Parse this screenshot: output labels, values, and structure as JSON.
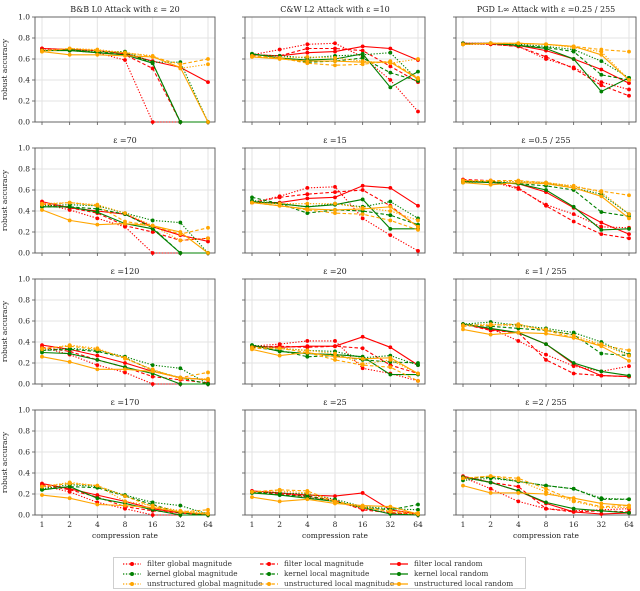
{
  "figure": {
    "x_axis_label": "compression rate",
    "y_axis_label": "robust accuracy"
  },
  "legend": [
    {
      "label": "filter global magnitude",
      "color": "#ff0000",
      "style": "dotted"
    },
    {
      "label": "filter local magnitude",
      "color": "#ff0000",
      "style": "dashed"
    },
    {
      "label": "filter local random",
      "color": "#ff0000",
      "style": "solid"
    },
    {
      "label": "kernel global magnitude",
      "color": "#008000",
      "style": "dotted"
    },
    {
      "label": "kernel local magnitude",
      "color": "#008000",
      "style": "dashed"
    },
    {
      "label": "kernel local random",
      "color": "#008000",
      "style": "solid"
    },
    {
      "label": "unstructured global magnitude",
      "color": "#ffa500",
      "style": "dotted"
    },
    {
      "label": "unstructured local magnitude",
      "color": "#ffa500",
      "style": "dashed"
    },
    {
      "label": "unstructured local random",
      "color": "#ffa500",
      "style": "solid"
    }
  ],
  "chart_data": {
    "type": "line",
    "x": [
      1,
      2,
      4,
      8,
      16,
      32,
      64
    ],
    "x_tick_labels": [
      "1",
      "2",
      "4",
      "8",
      "16",
      "32",
      "64"
    ],
    "y_tick_labels": [
      "0.0",
      "0.2",
      "0.4",
      "0.6",
      "0.8",
      "1.0"
    ],
    "ylim": [
      0,
      1
    ],
    "xscale": "log2",
    "grid": true,
    "legend_position": "bottom-center",
    "series_names": [
      "filter global magnitude",
      "filter local magnitude",
      "filter local random",
      "kernel global magnitude",
      "kernel local magnitude",
      "kernel local random",
      "unstructured global magnitude",
      "unstructured local magnitude",
      "unstructured local random"
    ],
    "panels": [
      {
        "title": "B&B L0 Attack with ε = 20",
        "row": 0,
        "col": 0,
        "values": [
          [
            0.7,
            0.68,
            0.66,
            0.59,
            0.0,
            0.0,
            0.0
          ],
          [
            0.7,
            0.69,
            0.66,
            0.64,
            0.51,
            0.0,
            0.0
          ],
          [
            0.7,
            0.69,
            0.68,
            0.65,
            0.58,
            0.52,
            0.38
          ],
          [
            0.68,
            0.69,
            0.67,
            0.67,
            0.57,
            0.57,
            0.0
          ],
          [
            0.68,
            0.69,
            0.66,
            0.66,
            0.56,
            0.0,
            0.0
          ],
          [
            0.68,
            0.68,
            0.66,
            0.64,
            0.56,
            0.0,
            0.0
          ],
          [
            0.68,
            0.7,
            0.69,
            0.66,
            0.63,
            0.51,
            0.55
          ],
          [
            0.67,
            0.7,
            0.68,
            0.66,
            0.62,
            0.55,
            0.6
          ],
          [
            0.67,
            0.64,
            0.64,
            0.63,
            0.62,
            0.52,
            0.0
          ]
        ]
      },
      {
        "title": "C&W L2 Attack with ε =10",
        "row": 0,
        "col": 1,
        "values": [
          [
            0.64,
            0.69,
            0.74,
            0.75,
            0.62,
            0.4,
            0.1
          ],
          [
            0.64,
            0.63,
            0.7,
            0.7,
            0.68,
            0.53,
            0.38
          ],
          [
            0.64,
            0.63,
            0.66,
            0.67,
            0.72,
            0.7,
            0.59
          ],
          [
            0.64,
            0.63,
            0.61,
            0.63,
            0.64,
            0.66,
            0.4
          ],
          [
            0.65,
            0.61,
            0.57,
            0.58,
            0.61,
            0.47,
            0.39
          ],
          [
            0.65,
            0.61,
            0.59,
            0.6,
            0.65,
            0.33,
            0.48
          ],
          [
            0.62,
            0.61,
            0.62,
            0.61,
            0.58,
            0.56,
            0.6
          ],
          [
            0.63,
            0.61,
            0.56,
            0.54,
            0.55,
            0.58,
            0.42
          ],
          [
            0.62,
            0.6,
            0.58,
            0.58,
            0.57,
            0.57,
            0.41
          ]
        ]
      },
      {
        "title": "PGD L∞ Attack with ε =0.25 / 255",
        "row": 0,
        "col": 2,
        "values": [
          [
            0.74,
            0.74,
            0.72,
            0.6,
            0.52,
            0.38,
            0.31
          ],
          [
            0.75,
            0.74,
            0.72,
            0.62,
            0.51,
            0.35,
            0.25
          ],
          [
            0.75,
            0.75,
            0.73,
            0.68,
            0.6,
            0.5,
            0.37
          ],
          [
            0.75,
            0.75,
            0.74,
            0.72,
            0.69,
            0.58,
            0.42
          ],
          [
            0.74,
            0.75,
            0.73,
            0.71,
            0.67,
            0.45,
            0.4
          ],
          [
            0.74,
            0.75,
            0.73,
            0.7,
            0.6,
            0.29,
            0.42
          ],
          [
            0.74,
            0.75,
            0.75,
            0.74,
            0.71,
            0.67,
            0.4
          ],
          [
            0.74,
            0.75,
            0.75,
            0.74,
            0.72,
            0.69,
            0.67
          ],
          [
            0.74,
            0.75,
            0.75,
            0.74,
            0.72,
            0.64,
            0.4
          ]
        ]
      },
      {
        "title": "ε =70",
        "row": 1,
        "col": 0,
        "values": [
          [
            0.47,
            0.41,
            0.33,
            0.25,
            0.0,
            0.0,
            0.0
          ],
          [
            0.47,
            0.43,
            0.38,
            0.26,
            0.2,
            0.12,
            0.14
          ],
          [
            0.49,
            0.43,
            0.4,
            0.37,
            0.25,
            0.17,
            0.11
          ],
          [
            0.45,
            0.46,
            0.45,
            0.38,
            0.31,
            0.29,
            0.0
          ],
          [
            0.44,
            0.44,
            0.42,
            0.37,
            0.24,
            0.0,
            0.0
          ],
          [
            0.44,
            0.44,
            0.39,
            0.28,
            0.23,
            0.0,
            0.0
          ],
          [
            0.47,
            0.48,
            0.46,
            0.38,
            0.26,
            0.12,
            0.14
          ],
          [
            0.46,
            0.48,
            0.45,
            0.3,
            0.26,
            0.18,
            0.24
          ],
          [
            0.41,
            0.31,
            0.27,
            0.28,
            0.26,
            0.2,
            0.0
          ]
        ]
      },
      {
        "title": "ε =15",
        "row": 1,
        "col": 1,
        "values": [
          [
            0.48,
            0.54,
            0.62,
            0.63,
            0.33,
            0.17,
            0.02
          ],
          [
            0.48,
            0.53,
            0.56,
            0.58,
            0.6,
            0.45,
            0.25
          ],
          [
            0.48,
            0.48,
            0.52,
            0.53,
            0.64,
            0.62,
            0.45
          ],
          [
            0.5,
            0.47,
            0.44,
            0.47,
            0.44,
            0.49,
            0.33
          ],
          [
            0.53,
            0.47,
            0.38,
            0.41,
            0.4,
            0.36,
            0.27
          ],
          [
            0.49,
            0.47,
            0.44,
            0.46,
            0.51,
            0.23,
            0.23
          ],
          [
            0.48,
            0.47,
            0.47,
            0.47,
            0.43,
            0.4,
            0.31
          ],
          [
            0.48,
            0.45,
            0.41,
            0.38,
            0.37,
            0.31,
            0.22
          ],
          [
            0.48,
            0.45,
            0.42,
            0.41,
            0.42,
            0.44,
            0.25
          ]
        ]
      },
      {
        "title": "ε =0.5 / 255",
        "row": 1,
        "col": 2,
        "values": [
          [
            0.69,
            0.68,
            0.61,
            0.46,
            0.37,
            0.25,
            0.24
          ],
          [
            0.7,
            0.69,
            0.62,
            0.45,
            0.3,
            0.18,
            0.14
          ],
          [
            0.69,
            0.67,
            0.66,
            0.58,
            0.43,
            0.29,
            0.18
          ],
          [
            0.67,
            0.68,
            0.68,
            0.67,
            0.62,
            0.56,
            0.37
          ],
          [
            0.68,
            0.68,
            0.66,
            0.64,
            0.6,
            0.39,
            0.35
          ],
          [
            0.68,
            0.67,
            0.66,
            0.6,
            0.44,
            0.22,
            0.23
          ],
          [
            0.69,
            0.68,
            0.68,
            0.67,
            0.64,
            0.58,
            0.37
          ],
          [
            0.69,
            0.69,
            0.69,
            0.67,
            0.63,
            0.59,
            0.55
          ],
          [
            0.67,
            0.65,
            0.67,
            0.66,
            0.62,
            0.54,
            0.33
          ]
        ]
      },
      {
        "title": "ε =120",
        "row": 2,
        "col": 0,
        "values": [
          [
            0.35,
            0.28,
            0.18,
            0.11,
            0.0,
            0.0,
            0.0
          ],
          [
            0.35,
            0.31,
            0.23,
            0.16,
            0.07,
            0.04,
            0.01
          ],
          [
            0.37,
            0.33,
            0.27,
            0.2,
            0.12,
            0.06,
            0.04
          ],
          [
            0.32,
            0.34,
            0.32,
            0.26,
            0.18,
            0.15,
            0.0
          ],
          [
            0.32,
            0.33,
            0.31,
            0.25,
            0.13,
            0.06,
            0.0
          ],
          [
            0.3,
            0.29,
            0.23,
            0.16,
            0.1,
            0.0,
            0.0
          ],
          [
            0.33,
            0.37,
            0.34,
            0.24,
            0.14,
            0.05,
            0.05
          ],
          [
            0.34,
            0.36,
            0.33,
            0.25,
            0.13,
            0.06,
            0.11
          ],
          [
            0.26,
            0.21,
            0.14,
            0.14,
            0.12,
            0.06,
            0.04
          ]
        ]
      },
      {
        "title": "ε =20",
        "row": 2,
        "col": 1,
        "values": [
          [
            0.36,
            0.38,
            0.41,
            0.41,
            0.15,
            0.1,
            0.03
          ],
          [
            0.35,
            0.36,
            0.35,
            0.36,
            0.34,
            0.18,
            0.1
          ],
          [
            0.36,
            0.35,
            0.36,
            0.36,
            0.45,
            0.35,
            0.18
          ],
          [
            0.37,
            0.34,
            0.32,
            0.31,
            0.25,
            0.27,
            0.18
          ],
          [
            0.35,
            0.32,
            0.26,
            0.27,
            0.23,
            0.21,
            0.2
          ],
          [
            0.37,
            0.31,
            0.29,
            0.28,
            0.26,
            0.09,
            0.09
          ],
          [
            0.35,
            0.34,
            0.32,
            0.29,
            0.19,
            0.23,
            0.1
          ],
          [
            0.34,
            0.34,
            0.3,
            0.23,
            0.18,
            0.16,
            0.03
          ],
          [
            0.33,
            0.27,
            0.3,
            0.26,
            0.24,
            0.25,
            0.1
          ]
        ]
      },
      {
        "title": "ε =1 / 255",
        "row": 2,
        "col": 2,
        "values": [
          [
            0.57,
            0.53,
            0.41,
            0.28,
            0.17,
            0.12,
            0.17
          ],
          [
            0.57,
            0.51,
            0.49,
            0.23,
            0.1,
            0.08,
            0.07
          ],
          [
            0.57,
            0.52,
            0.49,
            0.38,
            0.19,
            0.08,
            0.07
          ],
          [
            0.57,
            0.59,
            0.56,
            0.53,
            0.49,
            0.4,
            0.28
          ],
          [
            0.57,
            0.55,
            0.53,
            0.51,
            0.47,
            0.29,
            0.27
          ],
          [
            0.57,
            0.53,
            0.49,
            0.38,
            0.2,
            0.12,
            0.08
          ],
          [
            0.56,
            0.57,
            0.55,
            0.52,
            0.46,
            0.38,
            0.27
          ],
          [
            0.55,
            0.56,
            0.57,
            0.51,
            0.44,
            0.37,
            0.32
          ],
          [
            0.52,
            0.47,
            0.49,
            0.48,
            0.44,
            0.36,
            0.22
          ]
        ]
      },
      {
        "title": "ε =170",
        "row": 3,
        "col": 0,
        "values": [
          [
            0.28,
            0.22,
            0.12,
            0.06,
            0.0,
            0.0,
            0.0
          ],
          [
            0.29,
            0.24,
            0.17,
            0.08,
            0.04,
            0.02,
            0.0
          ],
          [
            0.3,
            0.25,
            0.19,
            0.13,
            0.06,
            0.02,
            0.0
          ],
          [
            0.25,
            0.29,
            0.27,
            0.19,
            0.12,
            0.09,
            0.01
          ],
          [
            0.24,
            0.27,
            0.26,
            0.18,
            0.1,
            0.02,
            0.0
          ],
          [
            0.24,
            0.27,
            0.16,
            0.11,
            0.05,
            0.0,
            0.0
          ],
          [
            0.27,
            0.31,
            0.28,
            0.13,
            0.09,
            0.04,
            0.02
          ],
          [
            0.27,
            0.3,
            0.28,
            0.18,
            0.08,
            0.03,
            0.05
          ],
          [
            0.19,
            0.16,
            0.1,
            0.09,
            0.07,
            0.03,
            0.01
          ]
        ]
      },
      {
        "title": "ε =25",
        "row": 3,
        "col": 1,
        "values": [
          [
            0.22,
            0.21,
            0.17,
            0.13,
            0.06,
            0.02,
            0.0
          ],
          [
            0.22,
            0.2,
            0.18,
            0.14,
            0.05,
            0.02,
            0.01
          ],
          [
            0.23,
            0.21,
            0.19,
            0.18,
            0.21,
            0.05,
            0.01
          ],
          [
            0.22,
            0.21,
            0.2,
            0.15,
            0.08,
            0.06,
            0.05
          ],
          [
            0.22,
            0.19,
            0.18,
            0.13,
            0.07,
            0.05,
            0.1
          ],
          [
            0.21,
            0.19,
            0.16,
            0.13,
            0.07,
            0.01,
            0.0
          ],
          [
            0.22,
            0.23,
            0.21,
            0.12,
            0.07,
            0.04,
            0.02
          ],
          [
            0.22,
            0.24,
            0.23,
            0.13,
            0.08,
            0.03,
            0.01
          ],
          [
            0.17,
            0.13,
            0.15,
            0.11,
            0.09,
            0.08,
            0.01
          ]
        ]
      },
      {
        "title": "ε =2 / 255",
        "row": 3,
        "col": 2,
        "values": [
          [
            0.36,
            0.25,
            0.13,
            0.06,
            0.04,
            0.05,
            0.06
          ],
          [
            0.36,
            0.31,
            0.27,
            0.06,
            0.03,
            0.04,
            0.03
          ],
          [
            0.37,
            0.31,
            0.23,
            0.11,
            0.03,
            0.01,
            0.02
          ],
          [
            0.33,
            0.35,
            0.32,
            0.28,
            0.25,
            0.16,
            0.15
          ],
          [
            0.35,
            0.36,
            0.32,
            0.28,
            0.25,
            0.15,
            0.15
          ],
          [
            0.36,
            0.31,
            0.23,
            0.12,
            0.06,
            0.04,
            0.02
          ],
          [
            0.35,
            0.37,
            0.33,
            0.22,
            0.13,
            0.07,
            0.07
          ],
          [
            0.35,
            0.37,
            0.35,
            0.25,
            0.14,
            0.08,
            0.09
          ],
          [
            0.28,
            0.21,
            0.21,
            0.2,
            0.16,
            0.11,
            0.09
          ]
        ]
      }
    ]
  }
}
